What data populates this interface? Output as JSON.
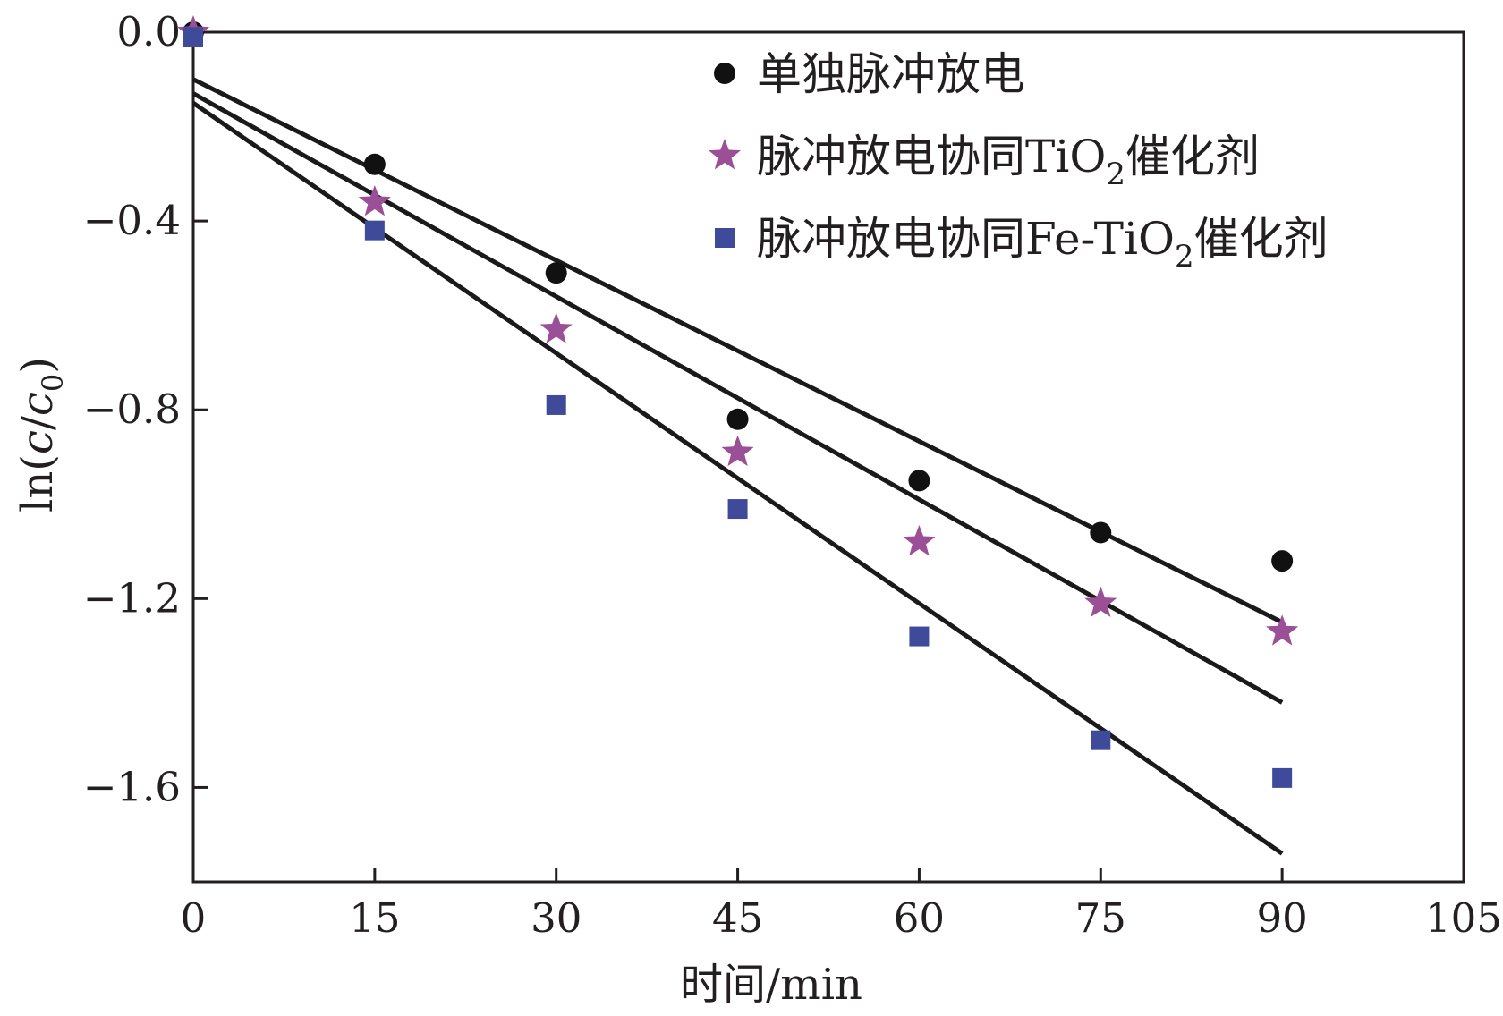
{
  "chart_data": {
    "type": "scatter",
    "xlabel": "时间/min",
    "ylabel_parts": {
      "prefix": "ln(",
      "c": "c",
      "slash": "/",
      "c0": "c",
      "sub0": "0",
      "suffix": ")"
    },
    "xlim": [
      0,
      105
    ],
    "ylim": [
      -1.8,
      0
    ],
    "x_ticks": [
      0,
      15,
      30,
      45,
      60,
      75,
      90,
      105
    ],
    "x_tick_labels": [
      "0",
      "15",
      "30",
      "45",
      "60",
      "75",
      "90",
      "105"
    ],
    "y_ticks": [
      0.0,
      -0.4,
      -0.8,
      -1.2,
      -1.6
    ],
    "y_tick_labels": [
      "0.0",
      "−0.4",
      "−0.8",
      "−1.2",
      "−1.6"
    ],
    "legend_position": "top-right",
    "series": [
      {
        "name": "单独脉冲放电",
        "legend_main": "单独脉冲放电",
        "legend_suffix": "",
        "marker": "circle",
        "color": "#111111",
        "x": [
          0,
          15,
          30,
          45,
          60,
          75,
          90
        ],
        "values": [
          0.0,
          -0.28,
          -0.51,
          -0.82,
          -0.95,
          -1.06,
          -1.12
        ],
        "fit": {
          "x": [
            0,
            90
          ],
          "y": [
            -0.1,
            -1.25
          ]
        }
      },
      {
        "name": "脉冲放电协同TiO2催化剂",
        "legend_main": "脉冲放电协同TiO",
        "legend_sub": "2",
        "legend_suffix": "催化剂",
        "marker": "star",
        "color": "#9b4f96",
        "x": [
          0,
          15,
          30,
          45,
          60,
          75,
          90
        ],
        "values": [
          0.0,
          -0.36,
          -0.63,
          -0.89,
          -1.08,
          -1.21,
          -1.27
        ],
        "fit": {
          "x": [
            0,
            90
          ],
          "y": [
            -0.13,
            -1.42
          ]
        }
      },
      {
        "name": "脉冲放电协同Fe-TiO2催化剂",
        "legend_main": "脉冲放电协同Fe-TiO",
        "legend_sub": "2",
        "legend_suffix": "催化剂",
        "marker": "square",
        "color": "#3f4a9a",
        "x": [
          0,
          15,
          30,
          45,
          60,
          75,
          90
        ],
        "values": [
          -0.01,
          -0.42,
          -0.79,
          -1.01,
          -1.28,
          -1.5,
          -1.58
        ],
        "fit": {
          "x": [
            0,
            90
          ],
          "y": [
            -0.15,
            -1.74
          ]
        }
      }
    ]
  }
}
